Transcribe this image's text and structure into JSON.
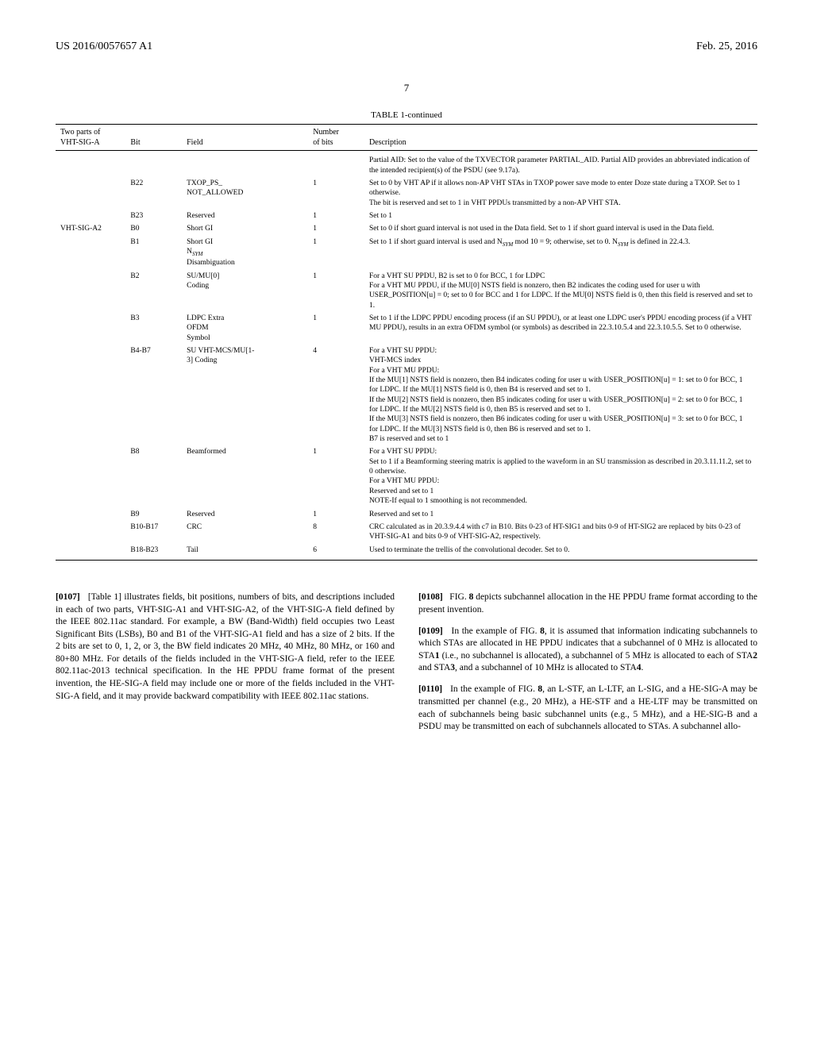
{
  "header": {
    "left": "US 2016/0057657 A1",
    "right": "Feb. 25, 2016"
  },
  "page": "7",
  "table_title": "TABLE 1-continued",
  "cols": {
    "c1a": "Two parts of",
    "c1b": "VHT-SIG-A",
    "c2": "Bit",
    "c3": "Field",
    "c4a": "Number",
    "c4b": "of bits",
    "c5": "Description"
  },
  "rows": [
    {
      "part": "",
      "bit": "",
      "field": "",
      "num": "",
      "desc": "Partial AID: Set to the value of the TXVECTOR parameter PARTIAL_AID. Partial AID provides an abbreviated indication of the intended recipient(s) of the PSDU (see 9.17a)."
    },
    {
      "part": "",
      "bit": "B22",
      "field": "TXOP_PS_ NOT_ALLOWED",
      "num": "1",
      "desc": "Set to 0 by VHT AP if it allows non-AP VHT STAs in TXOP power save mode to enter Doze state during a TXOP. Set to 1 otherwise.\nThe bit is reserved and set to 1 in VHT PPDUs transmitted by a non-AP VHT STA."
    },
    {
      "part": "",
      "bit": "B23",
      "field": "Reserved",
      "num": "1",
      "desc": "Set to 1"
    },
    {
      "part": "VHT-SIG-A2",
      "bit": "B0",
      "field": "Short GI",
      "num": "1",
      "desc": "Set to 0 if short guard interval is not used in the Data field. Set to 1 if short guard interval is used in the Data field."
    },
    {
      "part": "",
      "bit": "B1",
      "field": "Short GI N_SYM Disambiguation",
      "num": "1",
      "desc": "Set to 1 if short guard interval is used and N_SYM mod 10 = 9; otherwise, set to 0. N_SYM is defined in 22.4.3."
    },
    {
      "part": "",
      "bit": "B2",
      "field": "SU/MU[0] Coding",
      "num": "1",
      "desc": "For a VHT SU PPDU, B2 is set to 0 for BCC, 1 for LDPC\nFor a VHT MU PPDU, if the MU[0] NSTS field is nonzero, then B2 indicates the coding used for user u with USER_POSITION[u] = 0; set to 0 for BCC and 1 for LDPC. If the MU[0] NSTS field is 0, then this field is reserved and set to 1."
    },
    {
      "part": "",
      "bit": "B3",
      "field": "LDPC Extra OFDM Symbol",
      "num": "1",
      "desc": "Set to 1 if the LDPC PPDU encoding process (if an SU PPDU), or at least one LDPC user's PPDU encoding process (if a VHT MU PPDU), results in an extra OFDM symbol (or symbols) as described in 22.3.10.5.4 and 22.3.10.5.5. Set to 0 otherwise."
    },
    {
      "part": "",
      "bit": "B4-B7",
      "field": "SU VHT-MCS/MU[1-3] Coding",
      "num": "4",
      "desc": "For a VHT SU PPDU:\nVHT-MCS index\nFor a VHT MU PPDU:\nIf the MU[1] NSTS field is nonzero, then B4 indicates coding for user u with USER_POSITION[u] = 1: set to 0 for BCC, 1 for LDPC. If the MU[1] NSTS field is 0, then B4 is reserved and set to 1.\nIf the MU[2] NSTS field is nonzero, then B5 indicates coding for user u with USER_POSITION[u] = 2: set to 0 for BCC, 1 for LDPC. If the MU[2] NSTS field is 0, then B5 is reserved and set to 1.\nIf the MU[3] NSTS field is nonzero, then B6 indicates coding for user u with USER_POSITION[u] = 3: set to 0 for BCC, 1 for LDPC. If the MU[3] NSTS field is 0, then B6 is reserved and set to 1.\nB7 is reserved and set to 1"
    },
    {
      "part": "",
      "bit": "B8",
      "field": "Beamformed",
      "num": "1",
      "desc": "For a VHT SU PPDU:\nSet to 1 if a Beamforming steering matrix is applied to the waveform in an SU transmission as described in 20.3.11.11.2, set to 0 otherwise.\nFor a VHT MU PPDU:\nReserved and set to 1\nNOTE-If equal to 1 smoothing is not recommended."
    },
    {
      "part": "",
      "bit": "B9",
      "field": "Reserved",
      "num": "1",
      "desc": "Reserved and set to 1"
    },
    {
      "part": "",
      "bit": "B10-B17",
      "field": "CRC",
      "num": "8",
      "desc": "CRC calculated as in 20.3.9.4.4 with c7 in B10. Bits 0-23 of HT-SIG1 and bits 0-9 of HT-SIG2 are replaced by bits 0-23 of VHT-SIG-A1 and bits 0-9 of VHT-SIG-A2, respectively."
    },
    {
      "part": "",
      "bit": "B18-B23",
      "field": "Tail",
      "num": "6",
      "desc": "Used to terminate the trellis of the convolutional decoder. Set to 0."
    }
  ],
  "body": {
    "left_p1_label": "[0107]",
    "left_p1": "[Table 1] illustrates fields, bit positions, numbers of bits, and descriptions included in each of two parts, VHT-SIG-A1 and VHT-SIG-A2, of the VHT-SIG-A field defined by the IEEE 802.11ac standard. For example, a BW (Band-Width) field occupies two Least Significant Bits (LSBs), B0 and B1 of the VHT-SIG-A1 field and has a size of 2 bits. If the 2 bits are set to 0, 1, 2, or 3, the BW field indicates 20 MHz, 40 MHz, 80 MHz, or 160 and 80+80 MHz. For details of the fields included in the VHT-SIG-A field, refer to the IEEE 802.11ac-2013 technical specification. In the HE PPDU frame format of the present invention, the HE-SIG-A field may include one or more of the fields included in the VHT-SIG-A field, and it may provide backward compatibility with IEEE 802.11ac stations.",
    "right_p1_label": "[0108]",
    "right_p1_a": "FIG. ",
    "right_p1_b": "8",
    "right_p1_c": " depicts subchannel allocation in the HE PPDU frame format according to the present invention.",
    "right_p2_label": "[0109]",
    "right_p2_a": "In the example of FIG. ",
    "right_p2_b": "8",
    "right_p2_c": ", it is assumed that information indicating subchannels to which STAs are allocated in HE PPDU indicates that a subchannel of 0 MHz is allocated to STA",
    "right_p2_d": "1",
    "right_p2_e": " (i.e., no subchannel is allocated), a subchannel of 5 MHz is allocated to each of STA",
    "right_p2_f": "2",
    "right_p2_g": " and STA",
    "right_p2_h": "3",
    "right_p2_i": ", and a subchannel of 10 MHz is allocated to STA",
    "right_p2_j": "4",
    "right_p2_k": ".",
    "right_p3_label": "[0110]",
    "right_p3_a": "In the example of FIG. ",
    "right_p3_b": "8",
    "right_p3_c": ", an L-STF, an L-LTF, an L-SIG, and a HE-SIG-A may be transmitted per channel (e.g., 20 MHz), a HE-STF and a HE-LTF may be transmitted on each of subchannels being basic subchannel units (e.g., 5 MHz), and a HE-SIG-B and a PSDU may be transmitted on each of subchannels allocated to STAs. A subchannel allo-"
  }
}
